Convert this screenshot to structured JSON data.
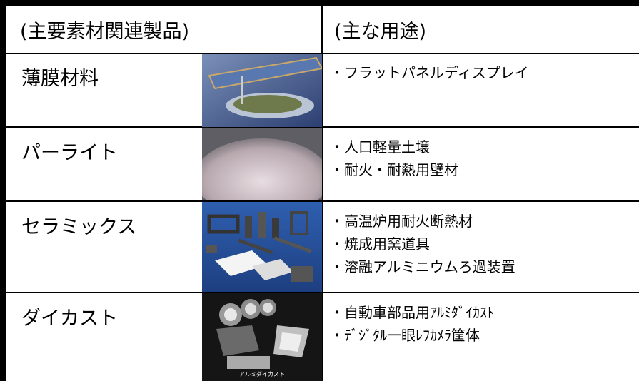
{
  "table": {
    "header": [
      "(主要素材関連製品)",
      "(主な用途)"
    ],
    "rows": [
      {
        "product": "薄膜材料",
        "uses": [
          "・フラットパネルディスプレイ"
        ]
      },
      {
        "product": "パーライト",
        "uses": [
          "・人口軽量土壌",
          "・耐火・耐熱用壁材"
        ]
      },
      {
        "product": "セラミックス",
        "uses": [
          "・高温炉用耐火断熱材",
          "・焼成用窯道具",
          "・溶融アルミニウムろ過装置"
        ]
      },
      {
        "product": "ダイカスト",
        "image_caption": "アルミダイカスト",
        "uses": [
          "・自動車部品用ｱﾙﾐﾀﾞｲｶｽﾄ",
          "・ﾃﾞｼﾞﾀﾙ一眼ﾚﾌｶﾒﾗ筐体"
        ]
      }
    ]
  }
}
